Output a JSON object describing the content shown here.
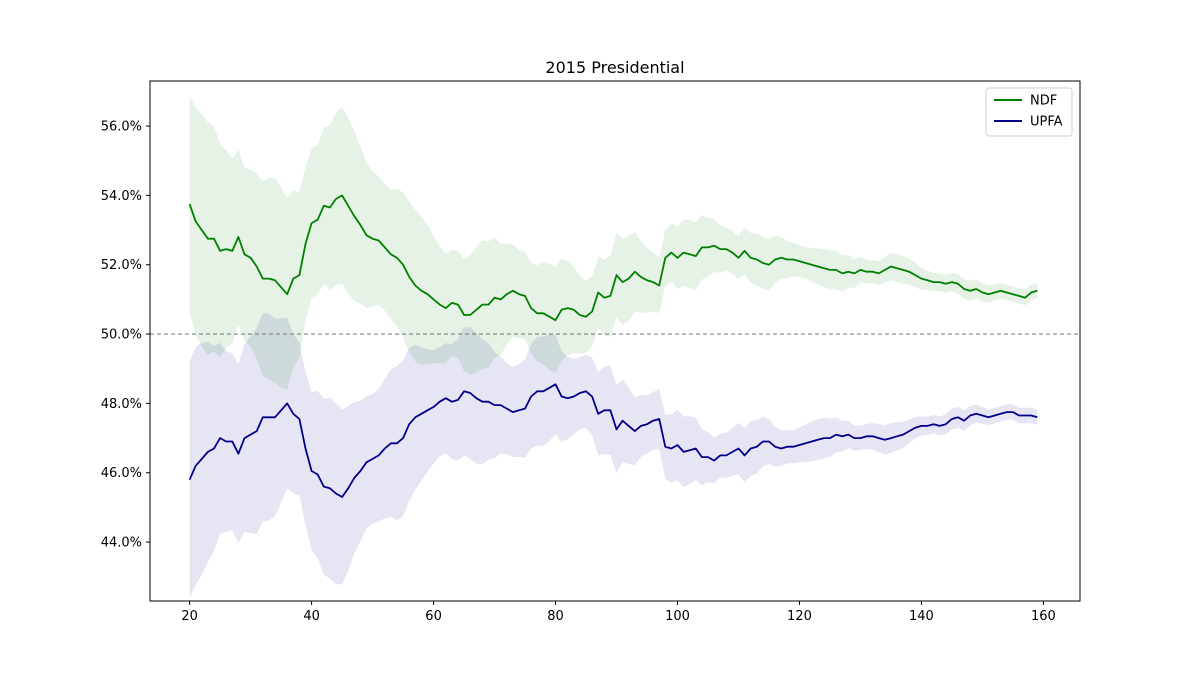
{
  "chart_data": {
    "type": "line",
    "title": "2015 Presidential",
    "xlabel": "",
    "ylabel": "",
    "xlim": [
      13.5,
      166
    ],
    "ylim": [
      42.3,
      57.3
    ],
    "x_ticks": [
      20,
      40,
      60,
      80,
      100,
      120,
      140,
      160
    ],
    "y_ticks": [
      44,
      46,
      48,
      50,
      52,
      54,
      56
    ],
    "y_tick_format": "percent_1dp",
    "reference_line": {
      "y": 50,
      "style": "dashed",
      "color": "#808080"
    },
    "legend": {
      "placement": "top-right",
      "entries": [
        "NDF",
        "UPFA"
      ]
    },
    "grid": false,
    "x": [
      20,
      21,
      22,
      23,
      24,
      25,
      26,
      27,
      28,
      29,
      30,
      31,
      32,
      33,
      34,
      35,
      36,
      37,
      38,
      39,
      40,
      41,
      42,
      43,
      44,
      45,
      46,
      47,
      48,
      49,
      50,
      51,
      52,
      53,
      54,
      55,
      56,
      57,
      58,
      59,
      60,
      61,
      62,
      63,
      64,
      65,
      66,
      67,
      68,
      69,
      70,
      71,
      72,
      73,
      74,
      75,
      76,
      77,
      78,
      79,
      80,
      81,
      82,
      83,
      84,
      85,
      86,
      87,
      88,
      89,
      90,
      91,
      92,
      93,
      94,
      95,
      96,
      97,
      98,
      99,
      100,
      101,
      102,
      103,
      104,
      105,
      106,
      107,
      108,
      109,
      110,
      111,
      112,
      113,
      114,
      115,
      116,
      117,
      118,
      119,
      120,
      121,
      122,
      123,
      124,
      125,
      126,
      127,
      128,
      129,
      130,
      131,
      132,
      133,
      134,
      135,
      136,
      137,
      138,
      139,
      140,
      141,
      142,
      143,
      144,
      145,
      146,
      147,
      148,
      149,
      150,
      151,
      152,
      153,
      154,
      155,
      156,
      157,
      158,
      159
    ],
    "series": [
      {
        "name": "NDF",
        "color": "#008000",
        "band_color": "#008000",
        "values": [
          53.75,
          53.25,
          53.0,
          52.75,
          52.75,
          52.4,
          52.45,
          52.4,
          52.8,
          52.3,
          52.2,
          51.95,
          51.6,
          51.6,
          51.55,
          51.35,
          51.15,
          51.6,
          51.7,
          52.6,
          53.2,
          53.3,
          53.7,
          53.65,
          53.9,
          54.0,
          53.7,
          53.4,
          53.15,
          52.85,
          52.75,
          52.7,
          52.5,
          52.3,
          52.2,
          52.0,
          51.65,
          51.4,
          51.25,
          51.15,
          51.0,
          50.85,
          50.75,
          50.9,
          50.85,
          50.55,
          50.55,
          50.7,
          50.85,
          50.85,
          51.05,
          51.0,
          51.15,
          51.25,
          51.15,
          51.1,
          50.75,
          50.6,
          50.6,
          50.5,
          50.4,
          50.7,
          50.75,
          50.7,
          50.55,
          50.5,
          50.65,
          51.2,
          51.05,
          51.1,
          51.7,
          51.5,
          51.6,
          51.8,
          51.65,
          51.55,
          51.5,
          51.4,
          52.2,
          52.35,
          52.2,
          52.35,
          52.3,
          52.25,
          52.5,
          52.5,
          52.55,
          52.45,
          52.45,
          52.35,
          52.2,
          52.4,
          52.2,
          52.15,
          52.05,
          52.0,
          52.15,
          52.2,
          52.15,
          52.15,
          52.1,
          52.05,
          52.0,
          51.95,
          51.9,
          51.85,
          51.85,
          51.75,
          51.8,
          51.75,
          51.85,
          51.8,
          51.8,
          51.75,
          51.85,
          51.95,
          51.9,
          51.85,
          51.8,
          51.7,
          51.6,
          51.55,
          51.5,
          51.5,
          51.45,
          51.5,
          51.45,
          51.3,
          51.25,
          51.3,
          51.2,
          51.15,
          51.2,
          51.25,
          51.2,
          51.15,
          51.1,
          51.05,
          51.2,
          51.25
        ]
      },
      {
        "name": "UPFA",
        "color": "#00008b",
        "band_color": "#00008b",
        "values": [
          45.8,
          46.2,
          46.4,
          46.6,
          46.7,
          47.0,
          46.9,
          46.9,
          46.55,
          47.0,
          47.1,
          47.2,
          47.6,
          47.6,
          47.6,
          47.8,
          48.0,
          47.7,
          47.55,
          46.7,
          46.05,
          45.95,
          45.6,
          45.55,
          45.4,
          45.3,
          45.55,
          45.85,
          46.05,
          46.3,
          46.4,
          46.5,
          46.7,
          46.85,
          46.85,
          47.0,
          47.4,
          47.6,
          47.7,
          47.8,
          47.9,
          48.05,
          48.15,
          48.05,
          48.1,
          48.35,
          48.3,
          48.15,
          48.05,
          48.05,
          47.95,
          47.95,
          47.85,
          47.75,
          47.8,
          47.85,
          48.2,
          48.35,
          48.35,
          48.45,
          48.55,
          48.2,
          48.15,
          48.2,
          48.3,
          48.35,
          48.2,
          47.7,
          47.8,
          47.8,
          47.25,
          47.5,
          47.35,
          47.2,
          47.35,
          47.4,
          47.5,
          47.55,
          46.75,
          46.7,
          46.8,
          46.6,
          46.65,
          46.7,
          46.45,
          46.45,
          46.35,
          46.5,
          46.5,
          46.6,
          46.7,
          46.5,
          46.7,
          46.75,
          46.9,
          46.9,
          46.75,
          46.7,
          46.75,
          46.75,
          46.8,
          46.85,
          46.9,
          46.95,
          47.0,
          47.0,
          47.1,
          47.05,
          47.1,
          47.0,
          47.0,
          47.05,
          47.05,
          47.0,
          46.95,
          47.0,
          47.05,
          47.1,
          47.2,
          47.3,
          47.35,
          47.35,
          47.4,
          47.35,
          47.4,
          47.55,
          47.6,
          47.5,
          47.65,
          47.7,
          47.65,
          47.6,
          47.65,
          47.7,
          47.75,
          47.75,
          47.65,
          47.65,
          47.65,
          47.6
        ]
      }
    ]
  }
}
